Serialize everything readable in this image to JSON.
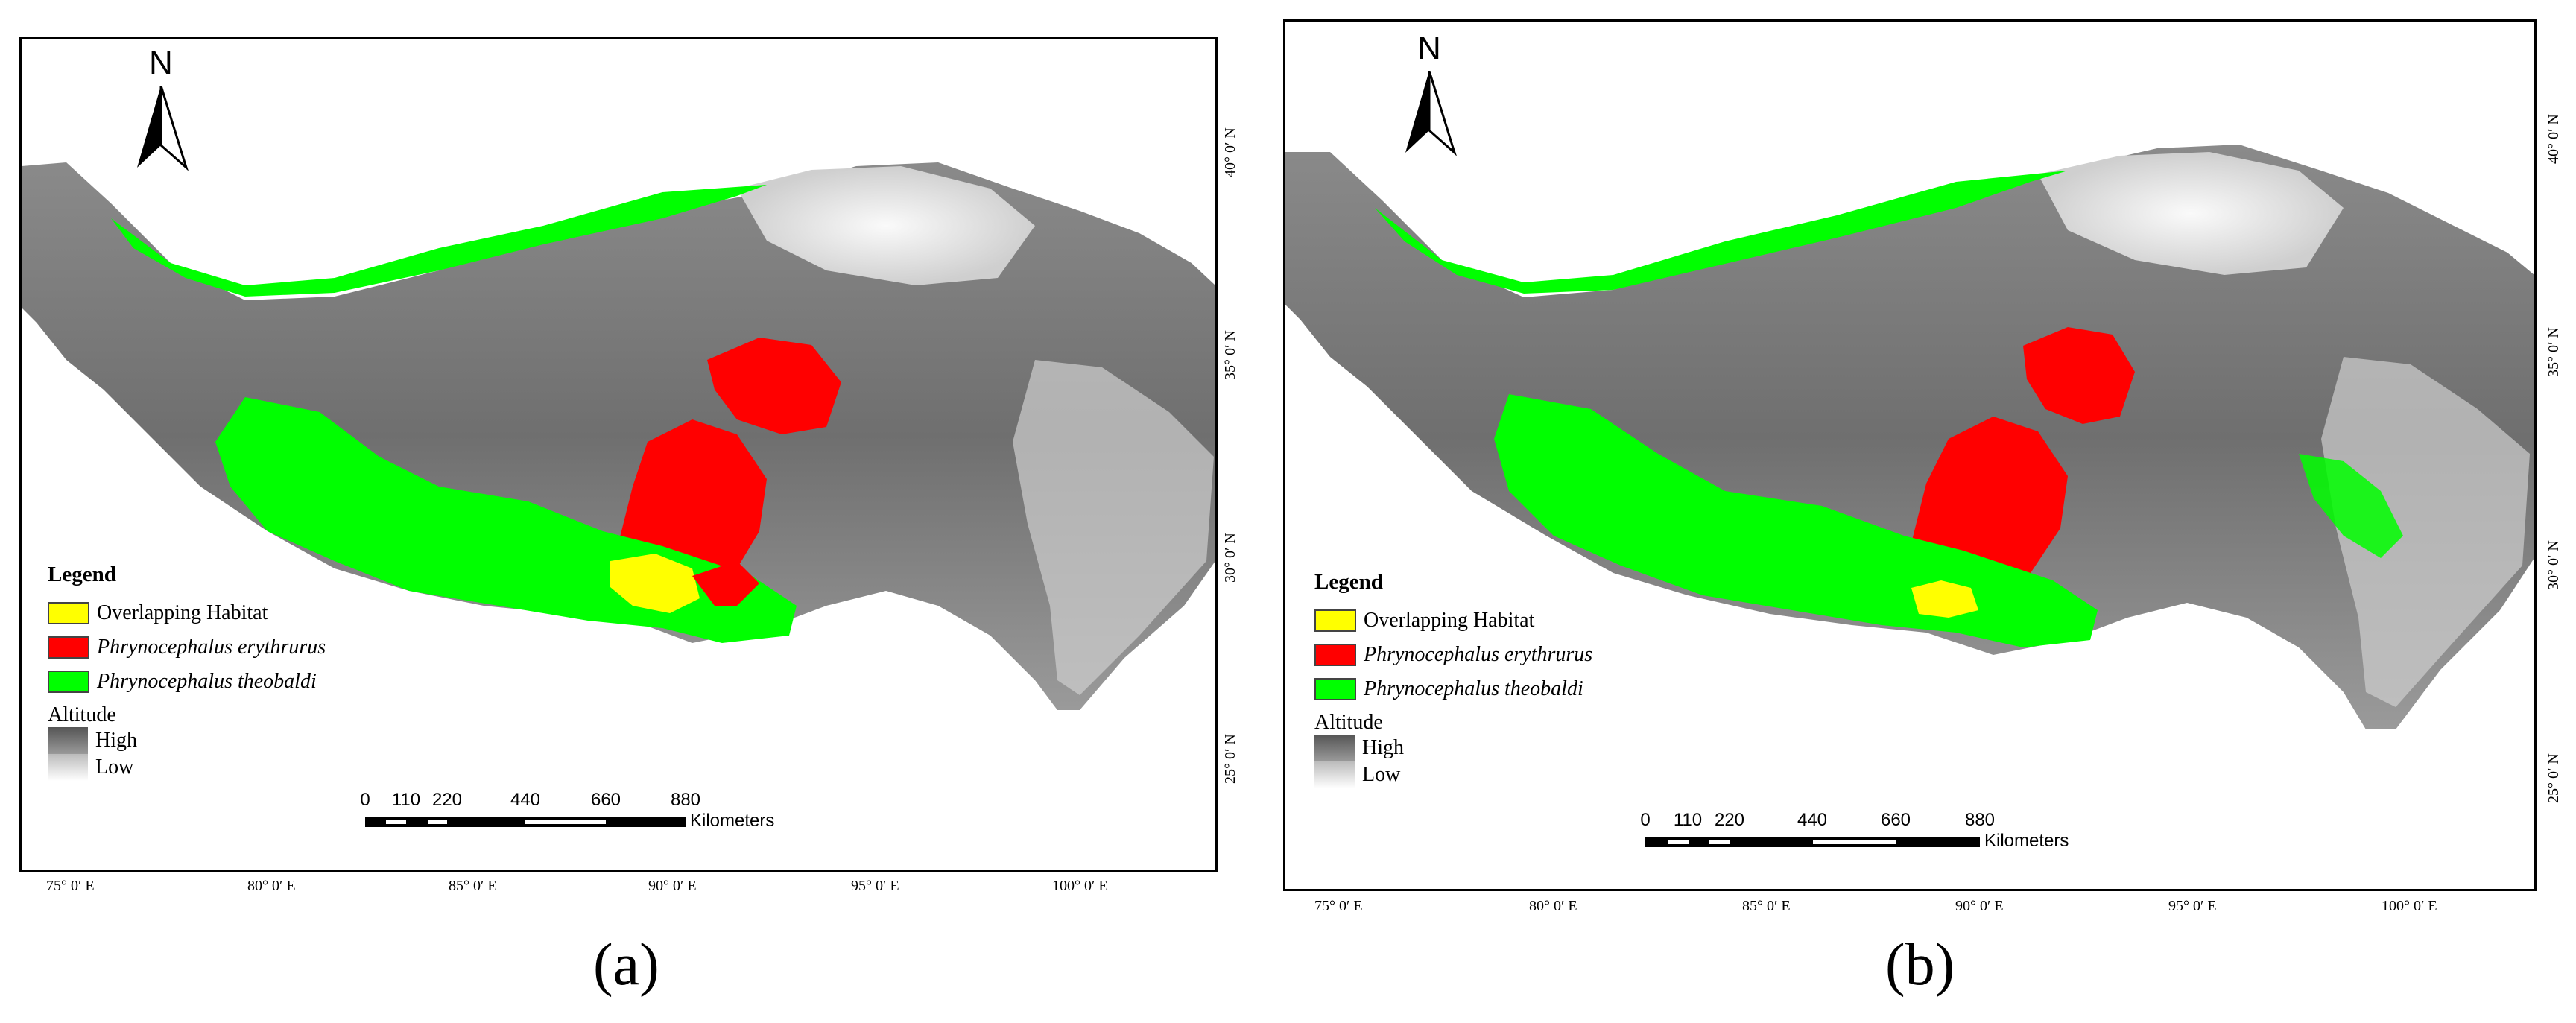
{
  "panels": [
    {
      "label": "(a)",
      "legend": {
        "title": "Legend",
        "items": [
          {
            "label": "Overlapping Habitat",
            "color": "#ffff00",
            "italic": false
          },
          {
            "label": "Phrynocephalus erythrurus",
            "color": "#ff0000",
            "italic": true
          },
          {
            "label": "Phrynocephalus theobaldi",
            "color": "#00ff00",
            "italic": true
          }
        ],
        "altitude_title": "Altitude",
        "altitude_high": "High",
        "altitude_low": "Low"
      },
      "scale_bar": {
        "ticks": [
          "0",
          "110",
          "220",
          "440",
          "660",
          "880"
        ],
        "unit": "Kilometers"
      },
      "north_label": "N",
      "lon_labels": [
        "75° 0′ E",
        "80° 0′ E",
        "85° 0′ E",
        "90° 0′ E",
        "95° 0′ E",
        "100° 0′ E"
      ],
      "lat_labels": [
        "40° 0′ N",
        "35° 0′ N",
        "30° 0′ N",
        "25° 0′ N"
      ]
    },
    {
      "label": "(b)",
      "legend": {
        "title": "Legend",
        "items": [
          {
            "label": "Overlapping Habitat",
            "color": "#ffff00",
            "italic": false
          },
          {
            "label": "Phrynocephalus erythrurus",
            "color": "#ff0000",
            "italic": true
          },
          {
            "label": "Phrynocephalus theobaldi",
            "color": "#00ff00",
            "italic": true
          }
        ],
        "altitude_title": "Altitude",
        "altitude_high": "High",
        "altitude_low": "Low"
      },
      "scale_bar": {
        "ticks": [
          "0",
          "110",
          "220",
          "440",
          "660",
          "880"
        ],
        "unit": "Kilometers"
      },
      "north_label": "N",
      "lon_labels": [
        "75° 0′ E",
        "80° 0′ E",
        "85° 0′ E",
        "90° 0′ E",
        "95° 0′ E",
        "100° 0′ E"
      ],
      "lat_labels": [
        "40° 0′ N",
        "35° 0′ N",
        "30° 0′ N",
        "25° 0′ N"
      ]
    }
  ],
  "colors": {
    "overlap": "#ffff00",
    "erythrurus": "#ff0000",
    "theobaldi": "#00ff00",
    "terrain_dark": "#5a5a5a",
    "terrain_light": "#f2f2f2"
  }
}
